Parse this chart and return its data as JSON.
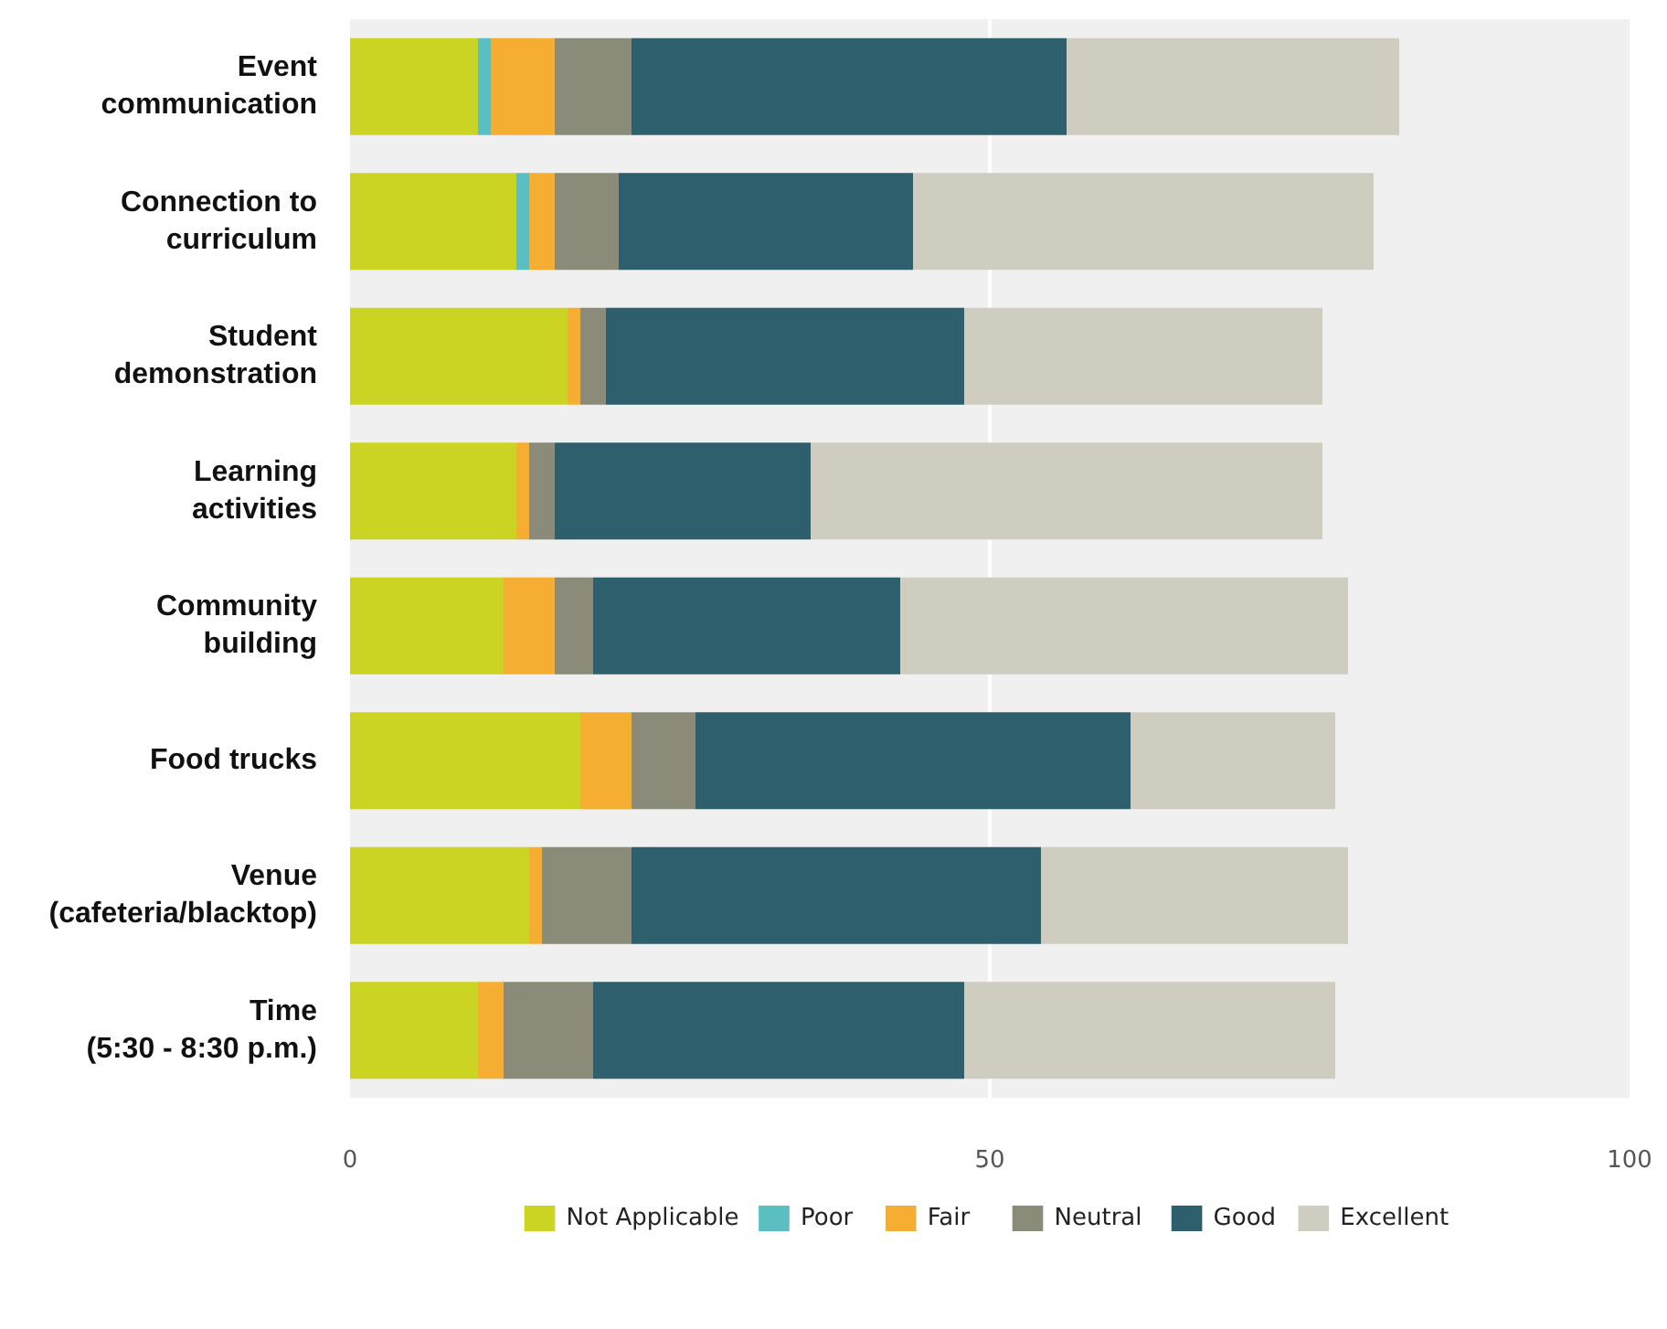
{
  "chart_data": {
    "type": "bar",
    "orientation": "horizontal",
    "stacked": true,
    "categories": [
      "Event\ncommunication",
      "Connection to\ncurriculum",
      "Student\ndemonstration",
      "Learning\nactivities",
      "Community\nbuilding",
      "Food trucks",
      "Venue\n(cafeteria/blacktop)",
      "Time\n(5:30 - 8:30 p.m.)"
    ],
    "series": [
      {
        "name": "Not Applicable",
        "color": "#cbd423",
        "values": [
          10,
          13,
          17,
          13,
          12,
          18,
          14,
          10
        ]
      },
      {
        "name": "Poor",
        "color": "#5bbfc1",
        "values": [
          1,
          1,
          0,
          0,
          0,
          0,
          0,
          0
        ]
      },
      {
        "name": "Fair",
        "color": "#f5ae32",
        "values": [
          5,
          2,
          1,
          1,
          4,
          4,
          1,
          2
        ]
      },
      {
        "name": "Neutral",
        "color": "#8a8b78",
        "values": [
          6,
          5,
          2,
          2,
          3,
          5,
          7,
          7
        ]
      },
      {
        "name": "Good",
        "color": "#2e5f6c",
        "values": [
          34,
          23,
          28,
          20,
          24,
          34,
          32,
          29
        ]
      },
      {
        "name": "Excellent",
        "color": "#cecdbf",
        "values": [
          26,
          36,
          28,
          40,
          35,
          16,
          24,
          29
        ]
      }
    ],
    "xlim": [
      0,
      100
    ],
    "xticks": [
      0,
      50,
      100
    ],
    "grid": "x",
    "legend": "bottom"
  }
}
